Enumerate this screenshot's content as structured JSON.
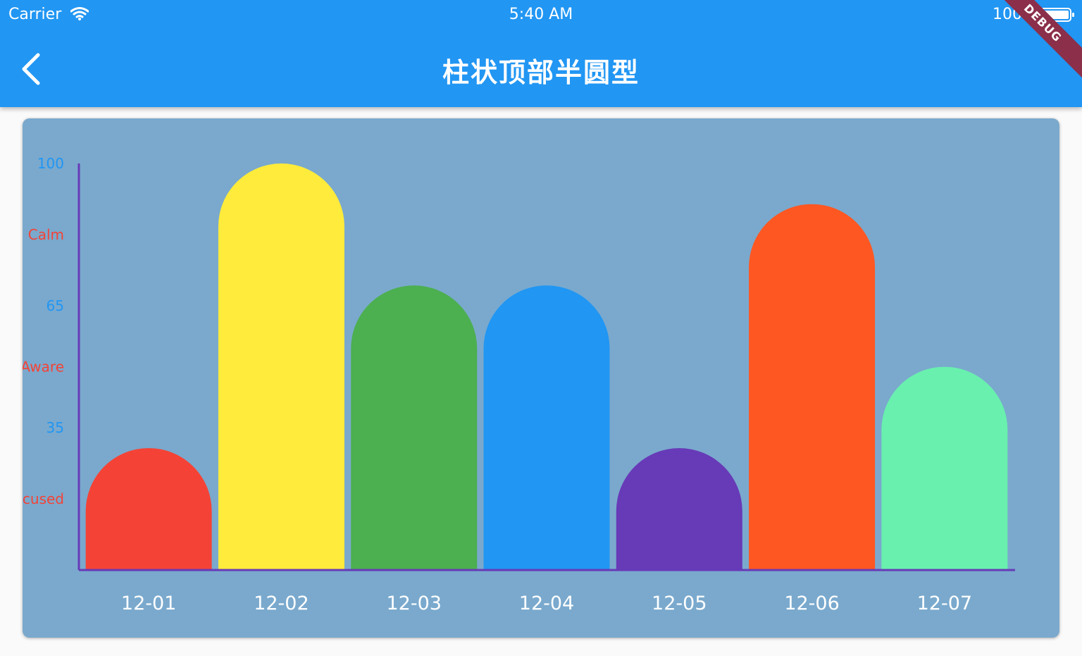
{
  "status_bar": {
    "carrier": "Carrier",
    "time": "5:40 AM",
    "battery": "100%"
  },
  "header": {
    "title": "柱状顶部半圆型",
    "back_icon": "chevron-left-icon",
    "debug_label": "DEBUG"
  },
  "colors": {
    "appbar": "#2196f3",
    "card": "#7aa9cd",
    "axis": "#673ab7",
    "left_tick_blue": "#2196f3",
    "left_tick_red": "#f44336"
  },
  "chart_data": {
    "type": "bar",
    "bar_style": "rounded-top-semicircle",
    "categories": [
      "12-01",
      "12-02",
      "12-03",
      "12-04",
      "12-05",
      "12-06",
      "12-07"
    ],
    "values": [
      30,
      100,
      70,
      70,
      30,
      90,
      50
    ],
    "bar_colors": [
      "#f44336",
      "#ffeb3b",
      "#4caf50",
      "#2196f3",
      "#673ab7",
      "#ff5722",
      "#69f0ae"
    ],
    "ylim": [
      0,
      100
    ],
    "y_ticks": [
      {
        "value": 100,
        "label": "100",
        "color": "#2196f3"
      },
      {
        "value": 82.5,
        "label": "Calm",
        "color": "#f44336"
      },
      {
        "value": 65,
        "label": "65",
        "color": "#2196f3"
      },
      {
        "value": 50,
        "label": "Aware",
        "color": "#f44336"
      },
      {
        "value": 35,
        "label": "35",
        "color": "#2196f3"
      },
      {
        "value": 17.5,
        "label": "Focused",
        "color": "#f44336"
      }
    ],
    "grid": false,
    "legend": "none"
  }
}
